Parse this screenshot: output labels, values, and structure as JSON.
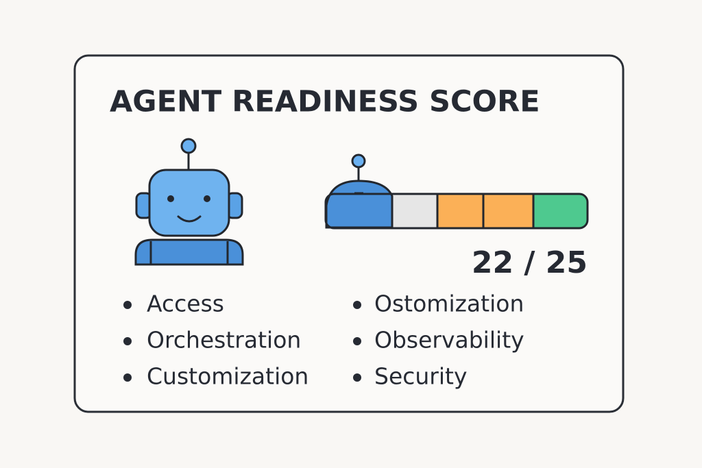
{
  "title": "AGENT READINESS SCORE",
  "score": "22 / 25",
  "left_list": [
    "Access",
    "Orchestration",
    "Customization"
  ],
  "right_list": [
    "Ostomization",
    "Observability",
    "Security"
  ]
}
